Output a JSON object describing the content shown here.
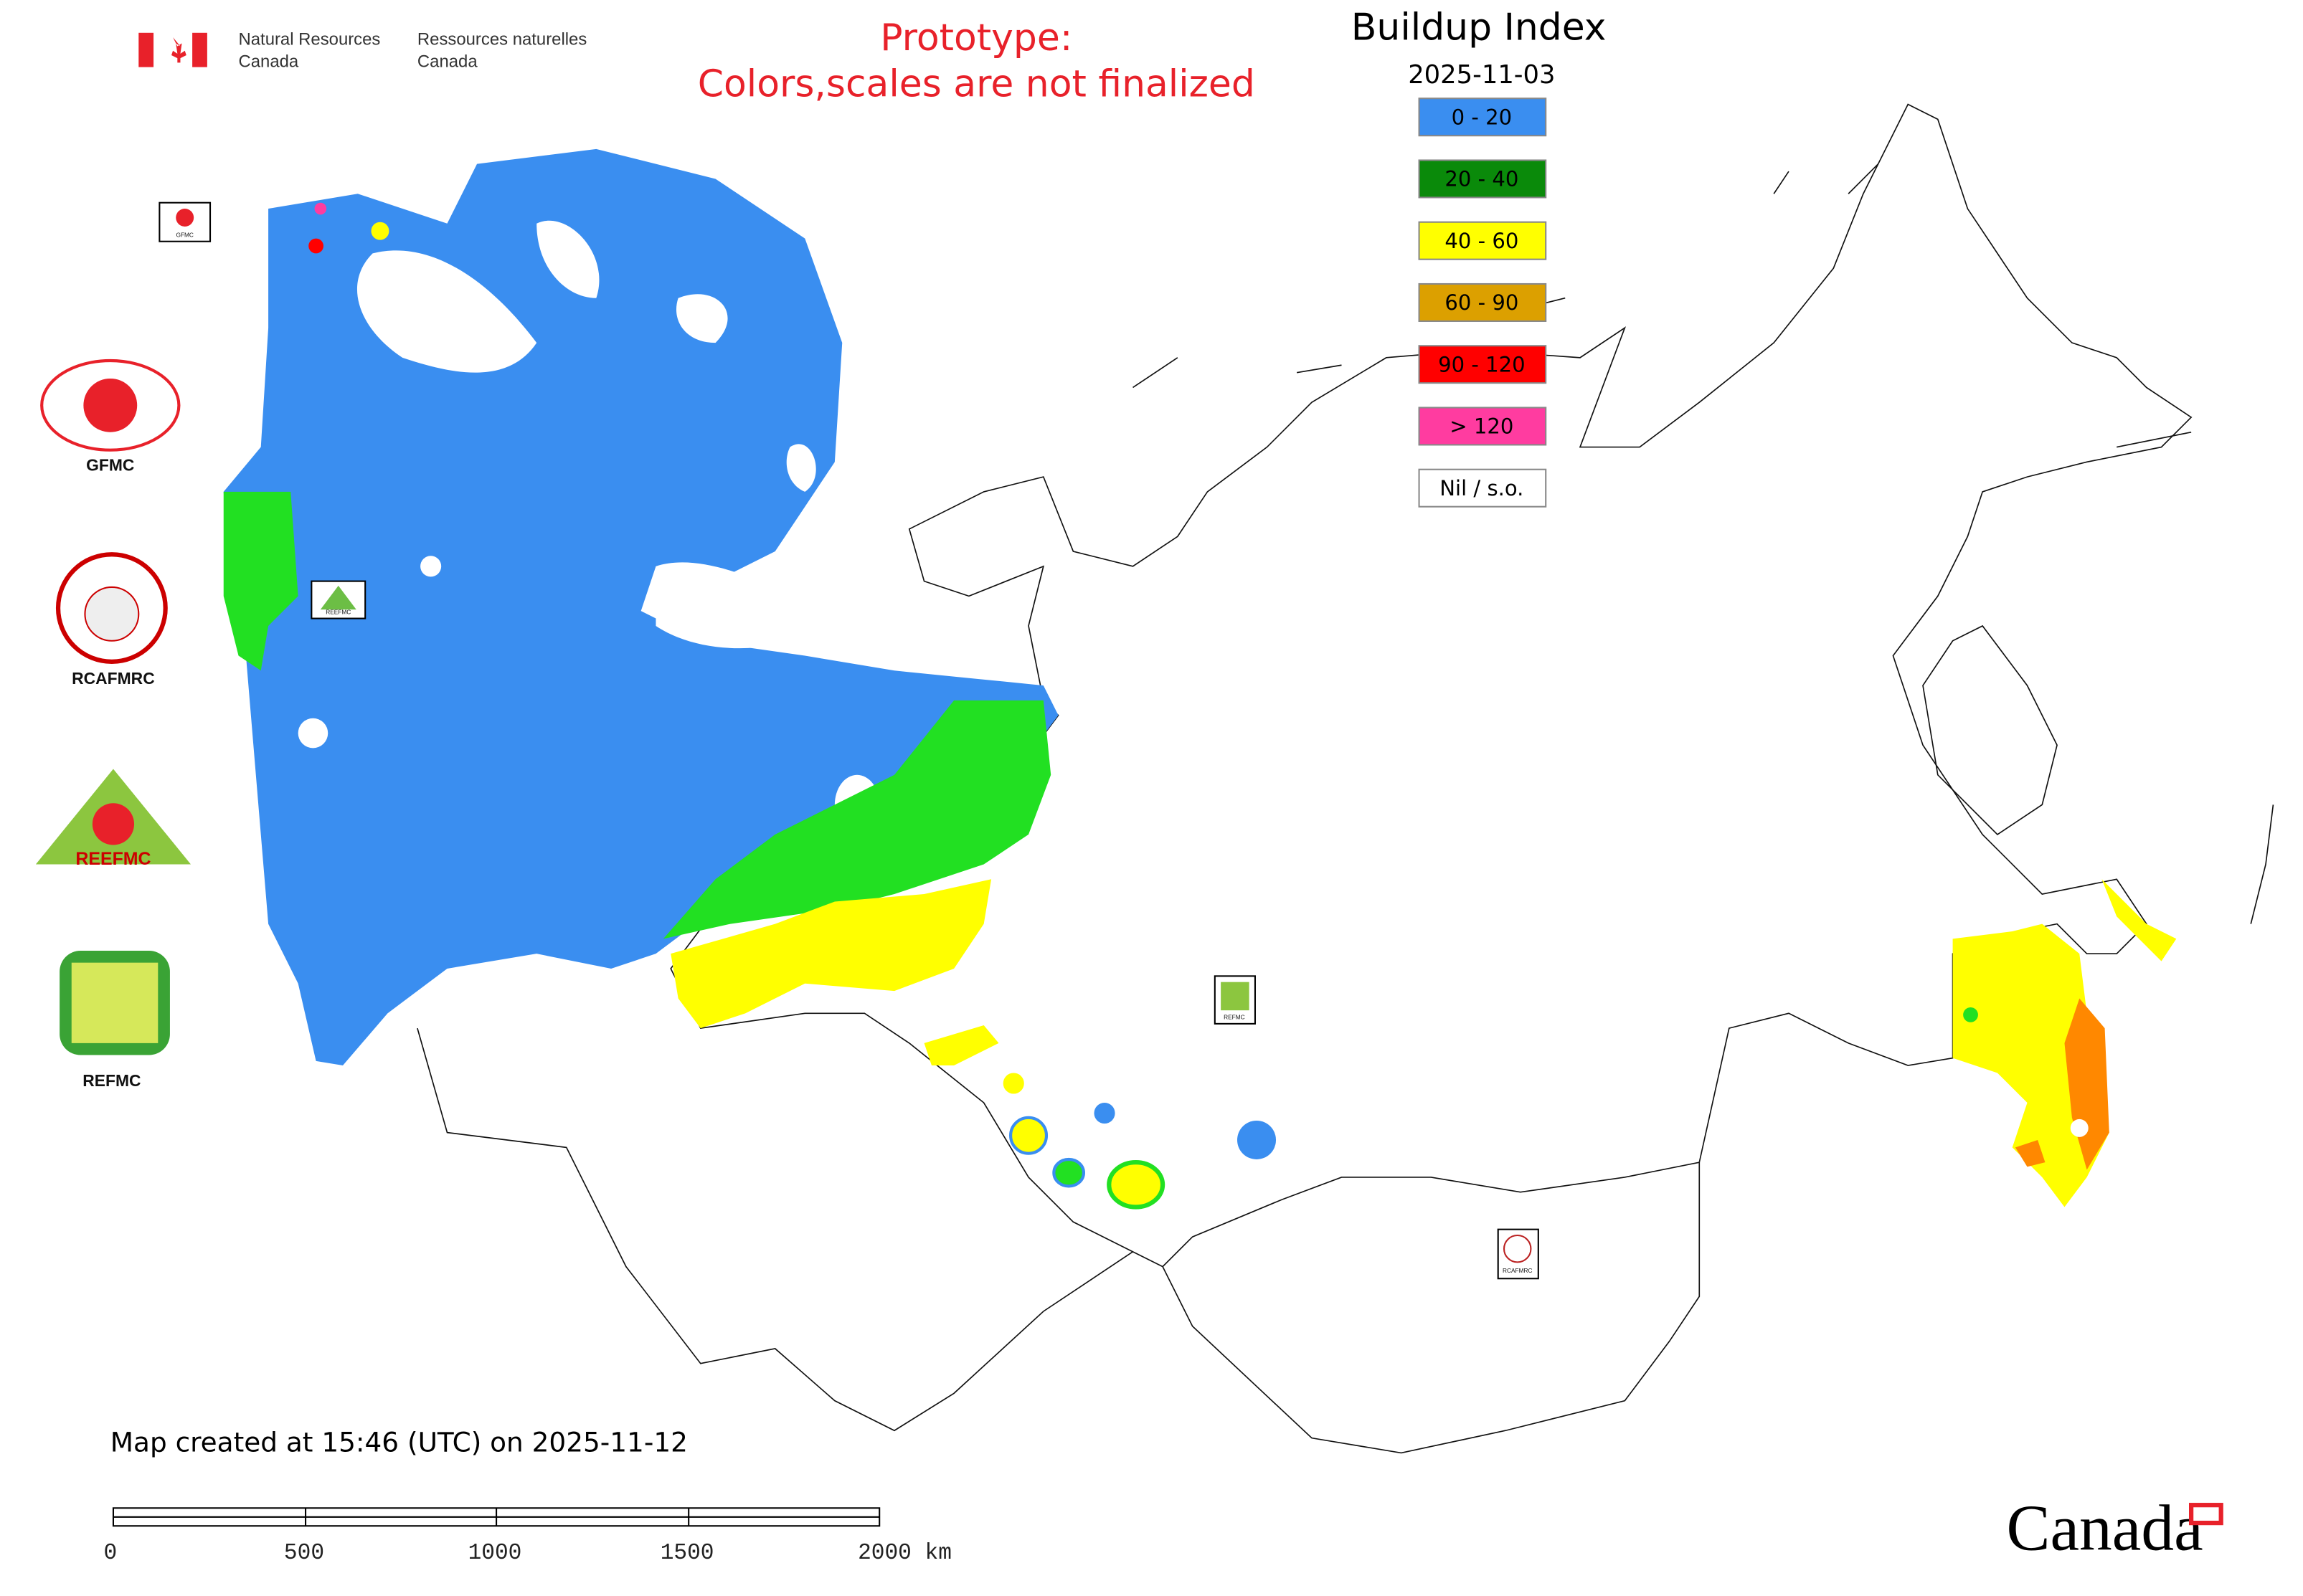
{
  "header": {
    "agency_en_1": "Natural Resources",
    "agency_en_2": "Canada",
    "agency_fr_1": "Ressources naturelles",
    "agency_fr_2": "Canada"
  },
  "notice": {
    "line1": "Prototype:",
    "line2": "Colors,scales are not finalized"
  },
  "legend": {
    "title": "Buildup Index",
    "date": "2025-11-03",
    "items": [
      {
        "label": "0 - 20",
        "color": "#3a8ef0"
      },
      {
        "label": "20 - 40",
        "color": "#0a8a0a"
      },
      {
        "label": "40 - 60",
        "color": "#ffff00"
      },
      {
        "label": "60 - 90",
        "color": "#dca000"
      },
      {
        "label": "90 - 120",
        "color": "#ff0000"
      },
      {
        "label": "> 120",
        "color": "#ff3ca0"
      },
      {
        "label": "Nil / s.o.",
        "color": "#ffffff"
      }
    ]
  },
  "logos": [
    "GFMC",
    "RCAFMRC",
    "REEFMC",
    "REFMC"
  ],
  "map_markers": [
    "GFMC",
    "REEFMC",
    "REFMC",
    "RCAFMRC"
  ],
  "footer": {
    "created": "Map created at 15:46 (UTC) on 2025-11-12",
    "scale_labels": [
      "0",
      "500",
      "1000",
      "1500",
      "2000 km"
    ],
    "wordmark": "Canada"
  }
}
